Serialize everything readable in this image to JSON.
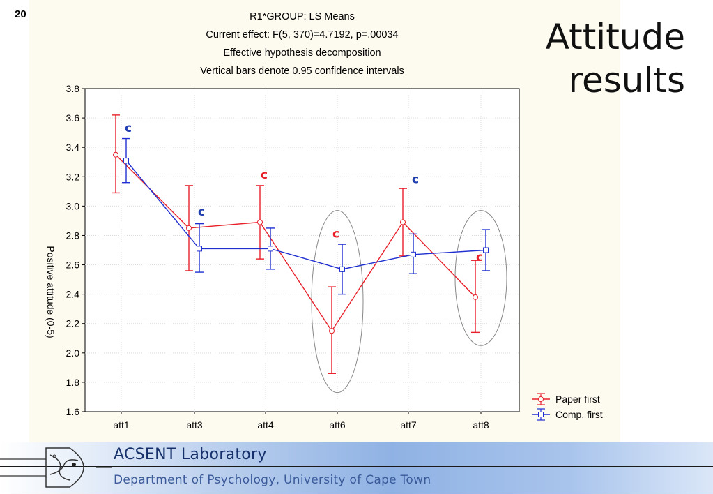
{
  "slide": {
    "number": "20",
    "title_line1": "Attitude",
    "title_line2": "results"
  },
  "footer": {
    "lab": "ACSENT Laboratory",
    "department": "Department of Psychology, University of Cape Town"
  },
  "chart_data": {
    "type": "line",
    "title_lines": [
      "R1*GROUP; LS Means",
      "Current effect: F(5, 370)=4.7192, p=.00034",
      "Effective hypothesis decomposition",
      "Vertical bars denote 0.95 confidence intervals"
    ],
    "ylabel": "Positive attitude (0-5)",
    "xlabel": "",
    "categories": [
      "att1",
      "att3",
      "att4",
      "att6",
      "att7",
      "att8"
    ],
    "ylim": [
      1.6,
      3.8
    ],
    "yticks": [
      "1.6",
      "1.8",
      "2.0",
      "2.2",
      "2.4",
      "2.6",
      "2.8",
      "3.0",
      "3.2",
      "3.4",
      "3.6",
      "3.8"
    ],
    "grid": true,
    "legend": "bottom-right outside",
    "series": [
      {
        "name": "Paper first",
        "color": "#e8202a",
        "values": [
          3.35,
          2.85,
          2.89,
          2.15,
          2.89,
          2.38
        ],
        "ci_low": [
          3.09,
          2.56,
          2.64,
          1.86,
          2.66,
          2.14
        ],
        "ci_high": [
          3.62,
          3.14,
          3.14,
          2.45,
          3.12,
          2.63
        ]
      },
      {
        "name": "Comp. first",
        "color": "#1f2fd0",
        "values": [
          3.31,
          2.71,
          2.71,
          2.57,
          2.67,
          2.7
        ],
        "ci_low": [
          3.16,
          2.55,
          2.57,
          2.4,
          2.54,
          2.56
        ],
        "ci_high": [
          3.46,
          2.88,
          2.85,
          2.74,
          2.81,
          2.84
        ]
      }
    ],
    "annotations": [
      {
        "text": "c",
        "category": "att1",
        "y": 3.53,
        "color": "#1f3fb0"
      },
      {
        "text": "c",
        "category": "att3",
        "y": 2.96,
        "color": "#1f3fb0"
      },
      {
        "text": "c",
        "category": "att4",
        "y": 3.21,
        "color": "#e8202a"
      },
      {
        "text": "c",
        "category": "att6",
        "y": 2.81,
        "color": "#e8202a"
      },
      {
        "text": "c",
        "category": "att7",
        "y": 3.18,
        "color": "#1f3fb0"
      },
      {
        "text": "c",
        "category": "att8",
        "y": 2.65,
        "color": "#e8202a"
      }
    ],
    "highlight_ellipses": [
      {
        "category": "att6",
        "y_low": 1.73,
        "y_high": 2.97
      },
      {
        "category": "att8",
        "y_low": 2.05,
        "y_high": 2.97
      }
    ]
  }
}
